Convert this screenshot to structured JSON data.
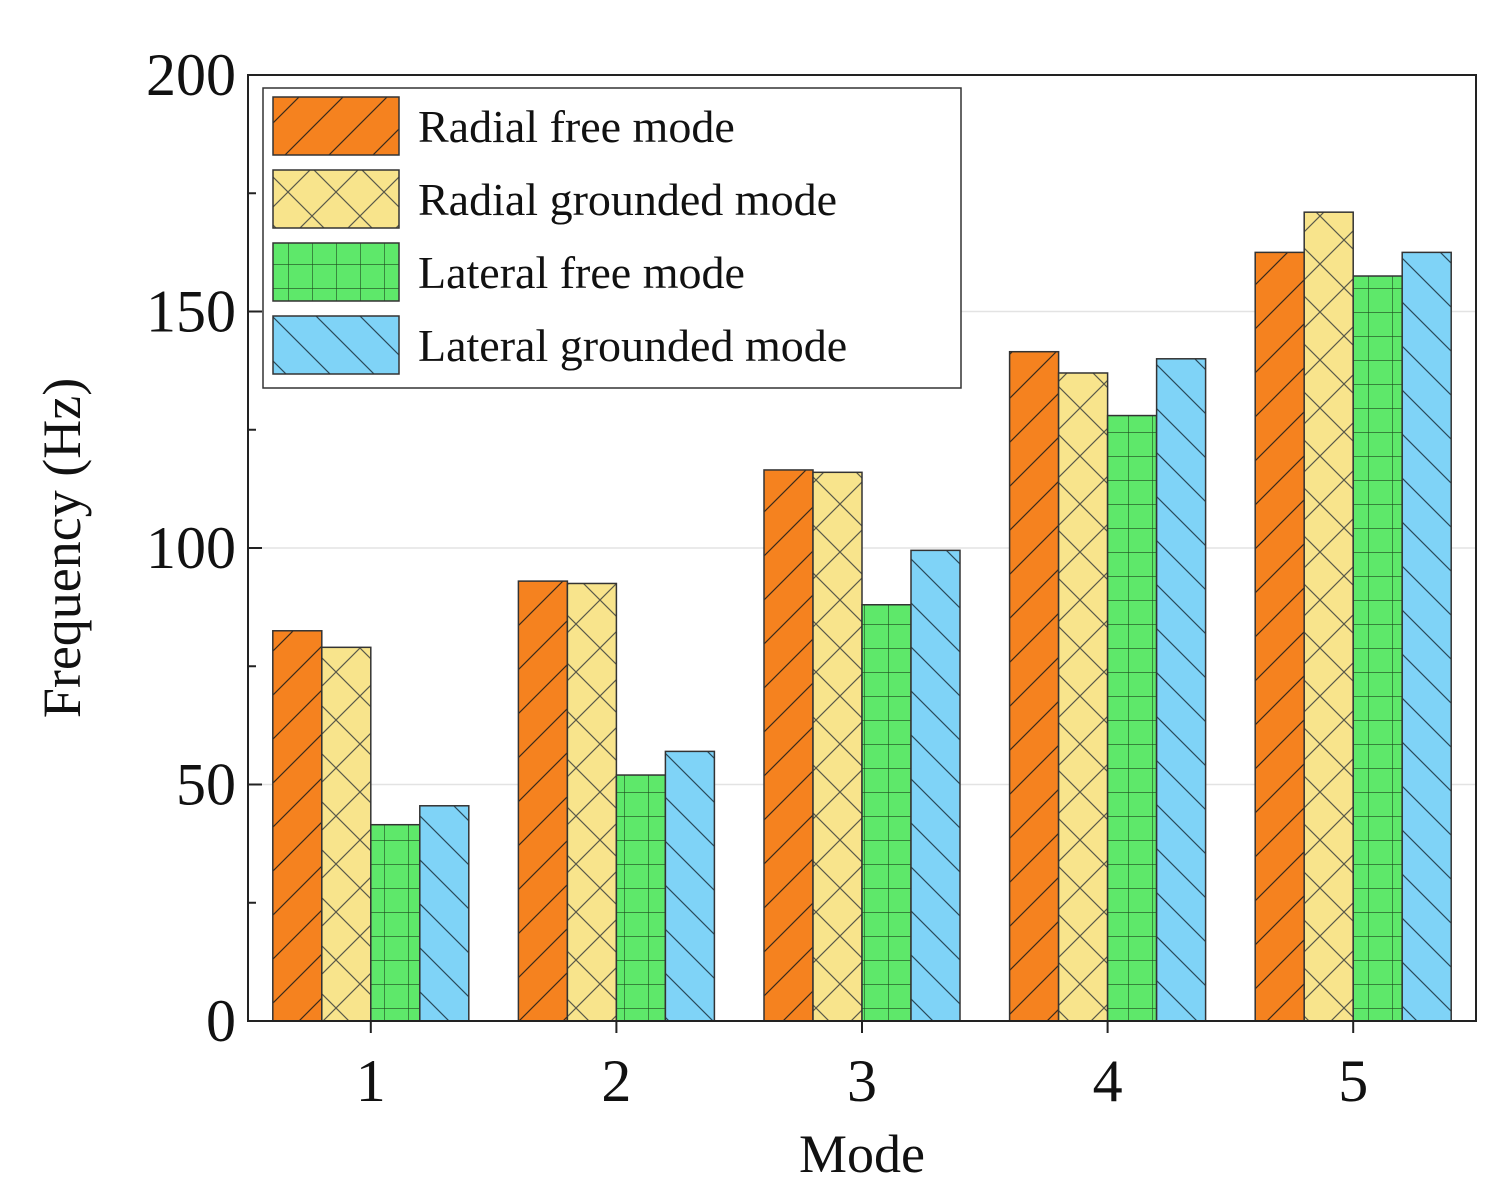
{
  "chart_data": {
    "type": "bar",
    "title": "",
    "xlabel": "Mode",
    "ylabel": "Frequency (Hz)",
    "categories": [
      "1",
      "2",
      "3",
      "4",
      "5"
    ],
    "ylim": [
      0,
      200
    ],
    "yticks": [
      0,
      50,
      100,
      150,
      200
    ],
    "grid": true,
    "legend_position": "top-left",
    "series": [
      {
        "name": "Radial free mode",
        "color": "#F5821F",
        "hatch": "diagonal-forward",
        "values": [
          82.5,
          93,
          116.5,
          141.5,
          162.5
        ]
      },
      {
        "name": "Radial grounded mode",
        "color": "#F8E48C",
        "hatch": "cross-diagonal",
        "values": [
          79,
          92.5,
          116,
          137,
          171
        ]
      },
      {
        "name": "Lateral free mode",
        "color": "#5EE86A",
        "hatch": "grid",
        "values": [
          41.5,
          52,
          88,
          128,
          157.5
        ]
      },
      {
        "name": "Lateral grounded mode",
        "color": "#7FD3F7",
        "hatch": "diagonal-backward",
        "values": [
          45.5,
          57,
          99.5,
          140,
          162.5
        ]
      }
    ]
  }
}
